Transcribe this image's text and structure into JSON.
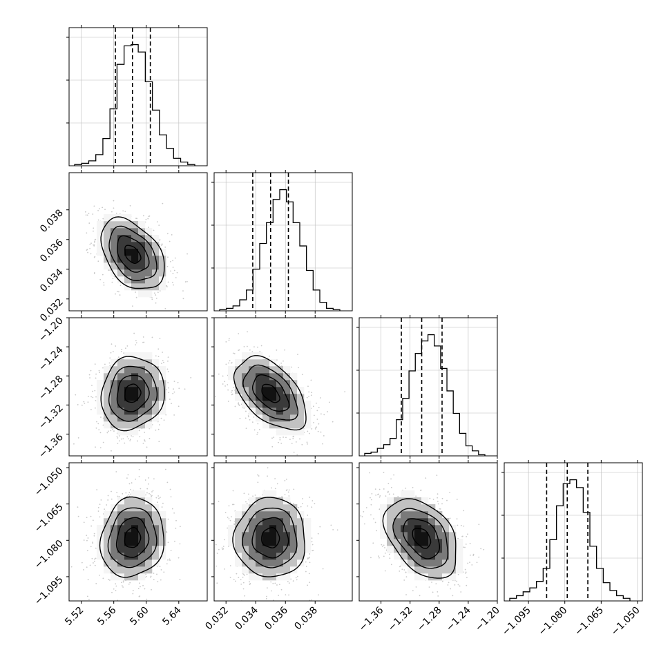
{
  "chart_data": {
    "type": "corner",
    "title": "",
    "parameters": [
      "",
      "",
      "",
      ""
    ],
    "ranges": [
      [
        5.505,
        5.675
      ],
      [
        0.0312,
        0.0405
      ],
      [
        -1.39,
        -1.2
      ],
      [
        -1.105,
        -1.048
      ]
    ],
    "ticks": [
      [
        5.52,
        5.56,
        5.6,
        5.64
      ],
      [
        0.032,
        0.034,
        0.036,
        0.038
      ],
      [
        -1.36,
        -1.32,
        -1.28,
        -1.24,
        -1.2
      ],
      [
        -1.095,
        -1.08,
        -1.065,
        -1.05
      ]
    ],
    "tick_labels": [
      [
        "5.52",
        "5.56",
        "5.60",
        "5.64"
      ],
      [
        "0.032",
        "0.034",
        "0.036",
        "0.038"
      ],
      [
        "−1.36",
        "−1.32",
        "−1.28",
        "−1.24",
        "−1.20"
      ],
      [
        "−1.095",
        "−1.080",
        "−1.065",
        "−1.050"
      ]
    ],
    "quantiles": [
      [
        5.562,
        5.583,
        5.605
      ],
      [
        0.0338,
        0.035,
        0.0362
      ],
      [
        -1.332,
        -1.304,
        -1.276
      ],
      [
        -1.0875,
        -1.079,
        -1.0705
      ]
    ],
    "histograms": [
      [
        1,
        2,
        4,
        9,
        22,
        46,
        82,
        97,
        98,
        92,
        68,
        45,
        25,
        14,
        6,
        3,
        1
      ],
      [
        1,
        2,
        4,
        9,
        17,
        34,
        55,
        72,
        91,
        99,
        89,
        72,
        53,
        33,
        17,
        7,
        2,
        1
      ],
      [
        2,
        3,
        6,
        9,
        14,
        29,
        46,
        68,
        82,
        92,
        97,
        88,
        70,
        52,
        34,
        18,
        8,
        4,
        1
      ],
      [
        2,
        4,
        7,
        10,
        15,
        25,
        47,
        73,
        90,
        93,
        87,
        68,
        42,
        25,
        14,
        8,
        4,
        2
      ]
    ],
    "covariance": {
      "means": [
        5.583,
        0.035,
        -1.304,
        -1.079
      ],
      "sigmas": [
        0.0195,
        0.0012,
        0.025,
        0.0082
      ],
      "correlations": [
        [
          1,
          -0.4,
          0.1,
          0.1
        ],
        [
          -0.4,
          1,
          -0.5,
          0.0
        ],
        [
          0.1,
          -0.5,
          1,
          -0.4
        ],
        [
          0.1,
          0.0,
          -0.4,
          1
        ]
      ]
    },
    "contour_levels": [
      "0.5 sigma",
      "1 sigma",
      "1.5 sigma",
      "2 sigma"
    ],
    "grid": true,
    "colors": {
      "line": "#000000",
      "points": "#c8c8c8",
      "grid": "#bbbbbb",
      "density": [
        "#f5f5f5",
        "#c2c2c2",
        "#7a7a7a",
        "#3a3a3a",
        "#121212"
      ]
    }
  }
}
